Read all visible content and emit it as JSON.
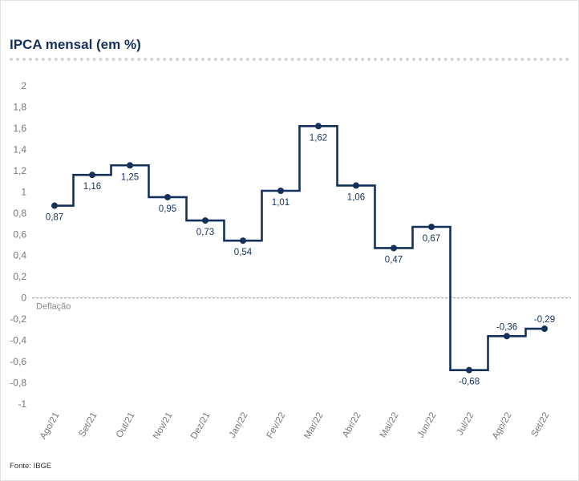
{
  "title": "IPCA mensal (em %)",
  "source": "Fonte: IBGE",
  "colors": {
    "title": "#14315c",
    "series": "#14315c",
    "tick_text": "#777777",
    "zero_line": "#999999",
    "annotation_text": "#888888",
    "label_text": "#14315c"
  },
  "chart_data": {
    "type": "line",
    "step": true,
    "categories": [
      "Ago/21",
      "Set/21",
      "Out/21",
      "Nov/21",
      "Dez/21",
      "Jan/22",
      "Fev/22",
      "Mar/22",
      "Abr/22",
      "Mai/22",
      "Jun/22",
      "Jul/22",
      "Ago/22",
      "Set/22"
    ],
    "series": [
      {
        "values": [
          0.87,
          1.16,
          1.25,
          0.95,
          0.73,
          0.54,
          1.01,
          1.62,
          1.06,
          0.47,
          0.67,
          -0.68,
          -0.36,
          -0.29
        ],
        "labels": [
          "0,87",
          "1,16",
          "1,25",
          "0,95",
          "0,73",
          "0,54",
          "1,01",
          "1,62",
          "1,06",
          "0,47",
          "0,67",
          "-0,68",
          "-0,36",
          "-0,29"
        ]
      }
    ],
    "ylim": [
      -1,
      2
    ],
    "y_ticks": [
      2,
      1.8,
      1.6,
      1.4,
      1.2,
      1,
      0.8,
      0.6,
      0.4,
      0.2,
      0,
      -0.2,
      -0.4,
      -0.6,
      -0.8,
      -1
    ],
    "y_tick_labels": [
      "2",
      "1,8",
      "1,6",
      "1,4",
      "1,2",
      "1",
      "0,8",
      "0,6",
      "0,4",
      "0,2",
      "0",
      "-0,2",
      "-0,4",
      "-0,6",
      "-0,8",
      "-1"
    ],
    "zero_line_label": "Deflação",
    "grid": false
  }
}
